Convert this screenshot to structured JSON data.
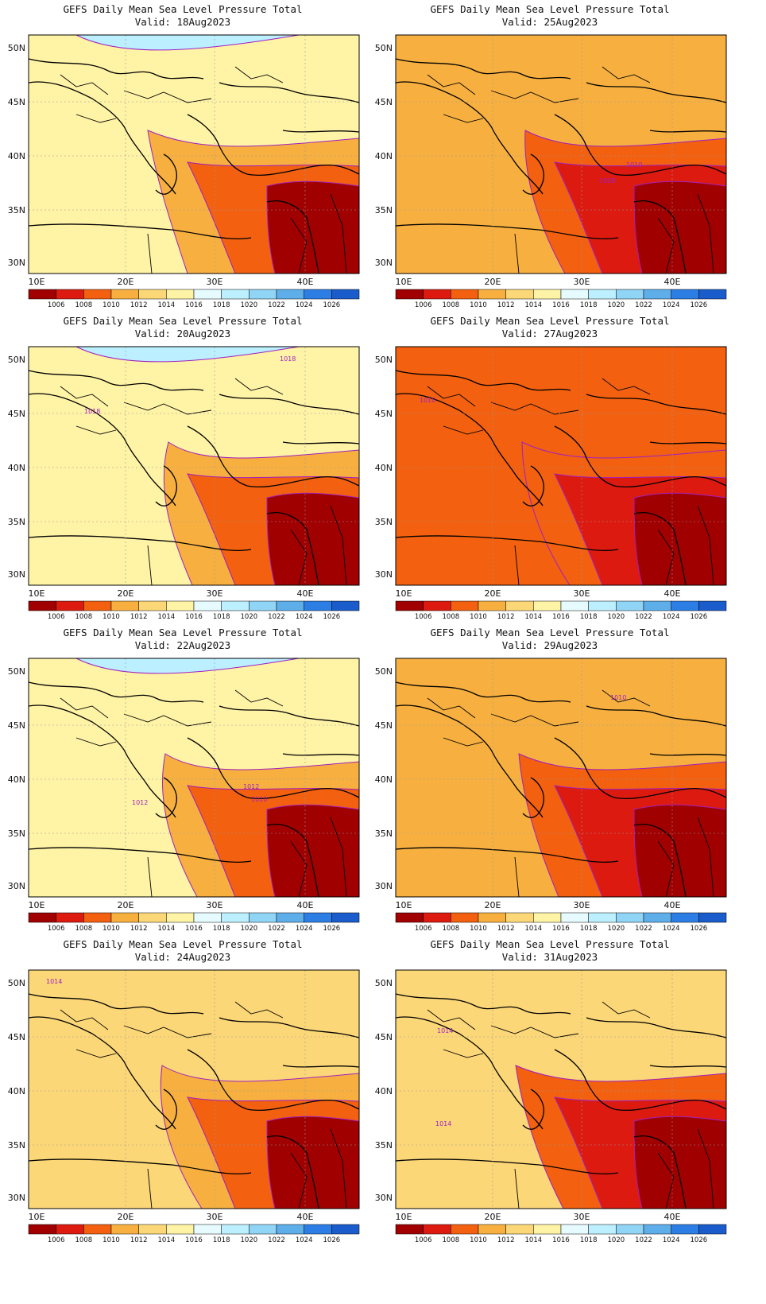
{
  "panel_title": "GEFS Daily Mean Sea Level Pressure Total",
  "lat_labels": [
    "50N",
    "45N",
    "40N",
    "35N",
    "30N"
  ],
  "lon_labels": [
    "10E",
    "20E",
    "30E",
    "40E"
  ],
  "colorbar": {
    "labels": [
      "1006",
      "1008",
      "1010",
      "1012",
      "1014",
      "1016",
      "1018",
      "1020",
      "1022",
      "1024",
      "1026"
    ],
    "colors": [
      "#a00000",
      "#dc1a10",
      "#f26010",
      "#f7b040",
      "#fcd778",
      "#fff3a6",
      "#e6fbff",
      "#bcefff",
      "#90d4f6",
      "#5eaeea",
      "#2c7ee4",
      "#1a5ccc"
    ]
  },
  "panels": [
    {
      "valid": "Valid: 18Aug2023",
      "base_color": "#fff3a6",
      "contour_labels": []
    },
    {
      "valid": "Valid: 25Aug2023",
      "base_color": "#f7b040",
      "contour_labels": [
        "1010",
        "1008"
      ]
    },
    {
      "valid": "Valid: 20Aug2023",
      "base_color": "#fff3a6",
      "contour_labels": [
        "1018",
        "1018"
      ]
    },
    {
      "valid": "Valid: 27Aug2023",
      "base_color": "#f26010",
      "contour_labels": [
        "1010"
      ]
    },
    {
      "valid": "Valid: 22Aug2023",
      "base_color": "#fff3a6",
      "contour_labels": [
        "1012",
        "1010",
        "1012"
      ]
    },
    {
      "valid": "Valid: 29Aug2023",
      "base_color": "#f7b040",
      "contour_labels": [
        "1010"
      ]
    },
    {
      "valid": "Valid: 24Aug2023",
      "base_color": "#fcd778",
      "contour_labels": [
        "1014"
      ]
    },
    {
      "valid": "Valid: 31Aug2023",
      "base_color": "#fcd778",
      "contour_labels": [
        "1014",
        "1014"
      ]
    }
  ]
}
